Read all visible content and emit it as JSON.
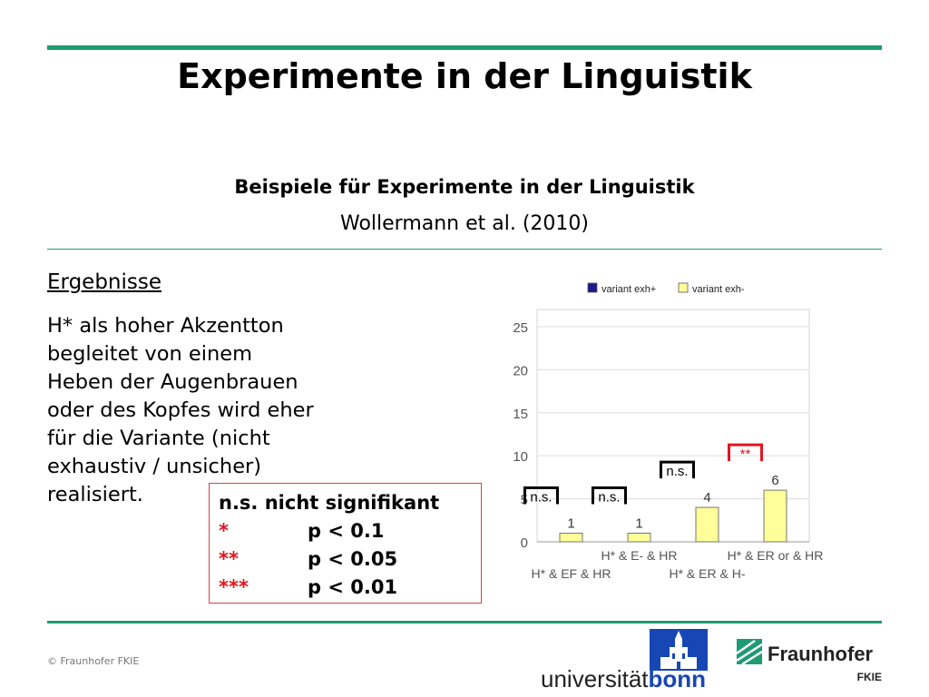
{
  "header": {
    "title": "Experimente in der Linguistik",
    "subtitle": "Beispiele für Experimente in der Linguistik",
    "citation": "Wollermann et al. (2010)"
  },
  "section": {
    "heading": "Ergebnisse",
    "lines": [
      "H* als hoher Akzentton",
      "begleitet von einem",
      "Heben der Augenbrauen",
      "oder des Kopfes wird eher",
      "für die Variante (nicht",
      "exhaustiv / unsicher)",
      "realisiert."
    ]
  },
  "significance_legend": {
    "title": "n.s. nicht signifikant",
    "rows": [
      {
        "symbol": "*",
        "label": "p < 0.1"
      },
      {
        "symbol": "**",
        "label": "p < 0.05"
      },
      {
        "symbol": "***",
        "label": "p < 0.01"
      }
    ]
  },
  "chart_data": {
    "type": "bar",
    "categories": [
      "H* & EF & HR",
      "H* & E- & HR",
      "H* & ER & H-",
      "H* & ER or & HR"
    ],
    "series": [
      {
        "name": "variant exh+",
        "color": "#1a1a8c",
        "values": [
          0,
          0,
          0,
          0
        ]
      },
      {
        "name": "variant exh-",
        "color": "#ffff99",
        "values": [
          1,
          1,
          4,
          6
        ]
      }
    ],
    "data_labels": [
      "1",
      "1",
      "4",
      "6"
    ],
    "significance": [
      {
        "label": "n.s.",
        "color": "#000000"
      },
      {
        "label": "n.s.",
        "color": "#000000"
      },
      {
        "label": "n.s.",
        "color": "#000000"
      },
      {
        "label": "**",
        "color": "#e3141e"
      }
    ],
    "yticks": [
      0,
      5,
      10,
      15,
      20,
      25
    ],
    "ylim": [
      0,
      27
    ],
    "grid": true,
    "legend_position": "top"
  },
  "footer": {
    "copyright": "© Fraunhofer FKIE",
    "logo_bonn_text": "universität",
    "logo_bonn_bold": "bonn",
    "logo_fraunhofer_text": "Fraunhofer",
    "logo_fraunhofer_sub": "FKIE"
  },
  "colors": {
    "accent": "#1f9a73",
    "significance_red": "#e3141e"
  }
}
